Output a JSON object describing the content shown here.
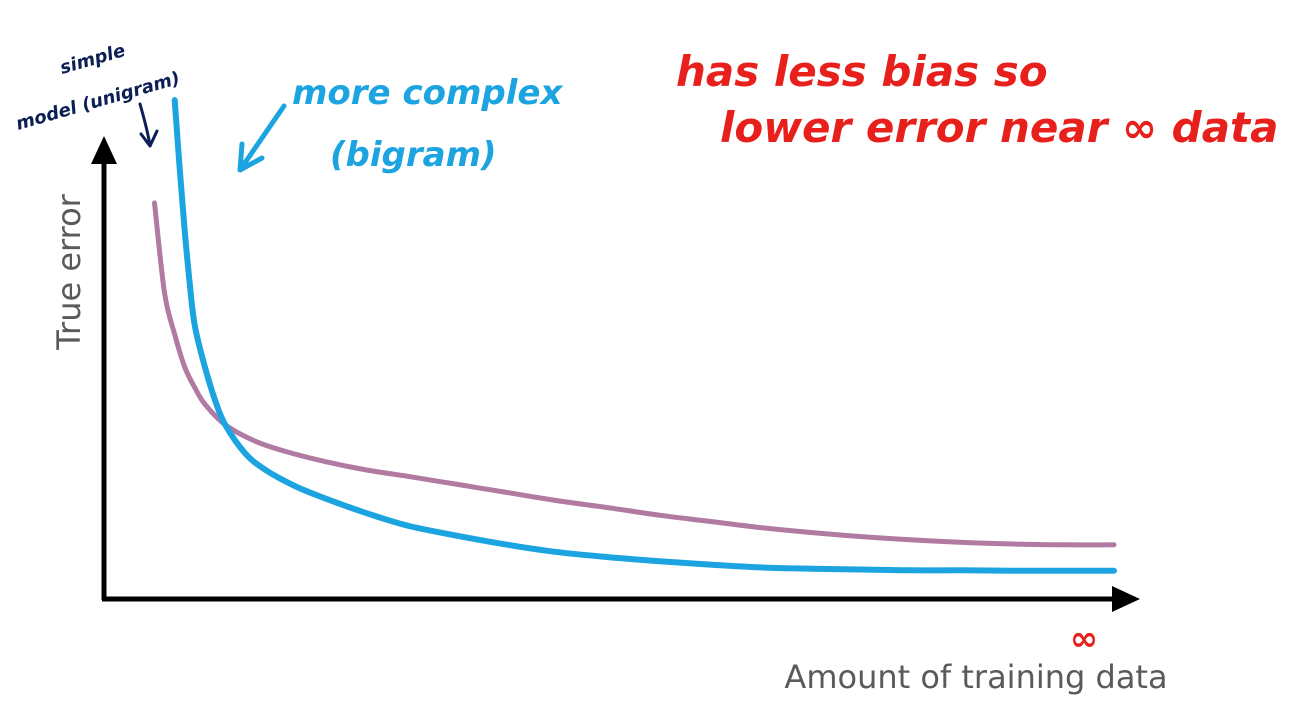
{
  "chart_data": {
    "type": "line",
    "title": "",
    "xlabel": "Amount of training data",
    "ylabel": "True error",
    "x_end_label": "∞",
    "xlim": [
      0,
      100
    ],
    "ylim": [
      0,
      100
    ],
    "grid": false,
    "legend": "none",
    "series": [
      {
        "name": "simple model (unigram)",
        "color": "#b07aa1",
        "x": [
          5,
          6,
          7,
          8,
          9,
          10,
          12,
          15,
          18,
          22,
          26,
          30,
          35,
          40,
          45,
          50,
          55,
          60,
          65,
          70,
          75,
          80,
          85,
          90,
          95,
          100
        ],
        "y": [
          92,
          70,
          60,
          52,
          47,
          43,
          38,
          34,
          31.5,
          29,
          27,
          25.5,
          23.5,
          21.5,
          19.5,
          17.8,
          16,
          14.5,
          13,
          11.8,
          10.8,
          10,
          9.4,
          9,
          8.8,
          8.8
        ]
      },
      {
        "name": "more complex (bigram)",
        "color": "#1ba4e0",
        "x": [
          7,
          7.5,
          8,
          8.5,
          9,
          10,
          11,
          12,
          14,
          16,
          19,
          22,
          26,
          30,
          35,
          40,
          45,
          50,
          55,
          60,
          65,
          70,
          75,
          80,
          85,
          90,
          95,
          100
        ],
        "y": [
          117,
          100,
          85,
          72,
          62,
          52,
          44,
          38,
          31,
          27,
          23,
          20,
          16.5,
          13.5,
          11,
          8.8,
          7,
          5.8,
          4.8,
          4,
          3.3,
          3,
          2.8,
          2.6,
          2.6,
          2.5,
          2.5,
          2.5
        ]
      }
    ],
    "annotations": [
      {
        "id": "simple-label-line1",
        "text": "simple",
        "color": "#0b1f55"
      },
      {
        "id": "simple-label-line2",
        "text": "model (unigram)",
        "color": "#0b1f55"
      },
      {
        "id": "complex-label-line1",
        "text": "more complex",
        "color": "#1ba4e0"
      },
      {
        "id": "complex-label-line2",
        "text": "(bigram)",
        "color": "#1ba4e0"
      },
      {
        "id": "note-line1",
        "text": "has less bias so",
        "color": "#e8201c"
      },
      {
        "id": "note-line2",
        "text": "lower error near ∞ data",
        "color": "#e8201c"
      }
    ]
  }
}
